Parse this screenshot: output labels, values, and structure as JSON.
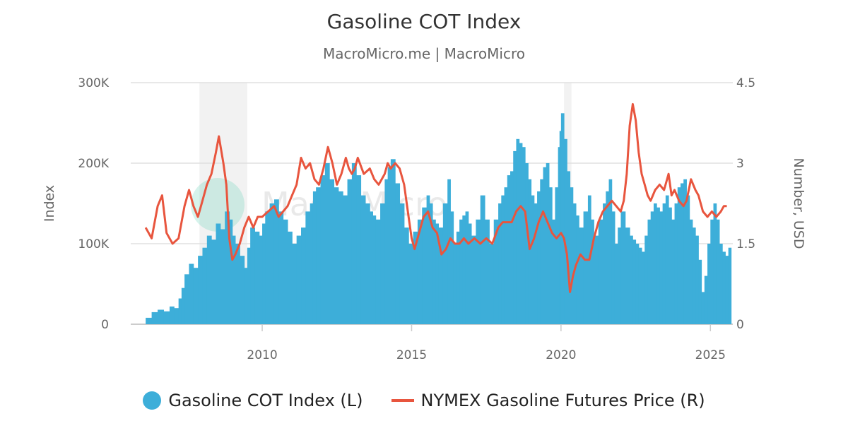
{
  "colors": {
    "index": "#3daed9",
    "price": "#e8553e",
    "recession": "#f2f2f2",
    "grid": "#e0e0e0"
  },
  "chart_data": {
    "type": "bar+line",
    "title": "Gasoline COT Index",
    "subtitle": "MacroMicro.me | MacroMicro",
    "xlabel": "",
    "ylabel_left": "Index",
    "ylabel_right": "Number, USD",
    "xlim": [
      2005.6,
      2025.75
    ],
    "ylim_left": [
      0,
      300000
    ],
    "ylim_right": [
      0,
      4.5
    ],
    "x_ticks": [
      "2010",
      "2015",
      "2020",
      "2025"
    ],
    "y_left_ticks": [
      "0",
      "100K",
      "200K",
      "300K"
    ],
    "y_right_ticks": [
      "0",
      "1.5",
      "3",
      "4.5"
    ],
    "grid": true,
    "legend": "bottom",
    "recessions": [
      [
        2007.9,
        2009.5
      ],
      [
        2020.1,
        2020.35
      ]
    ],
    "series": [
      {
        "name": "Gasoline COT Index (L)",
        "type": "bar",
        "axis": "left",
        "x": [
          2006.1,
          2006.3,
          2006.5,
          2006.7,
          2006.9,
          2007.05,
          2007.2,
          2007.3,
          2007.4,
          2007.55,
          2007.7,
          2007.85,
          2008.0,
          2008.15,
          2008.3,
          2008.45,
          2008.6,
          2008.75,
          2008.9,
          2009.0,
          2009.1,
          2009.25,
          2009.4,
          2009.5,
          2009.6,
          2009.75,
          2009.9,
          2010.0,
          2010.1,
          2010.25,
          2010.4,
          2010.55,
          2010.7,
          2010.85,
          2011.0,
          2011.15,
          2011.3,
          2011.45,
          2011.6,
          2011.7,
          2011.8,
          2011.95,
          2012.1,
          2012.25,
          2012.4,
          2012.55,
          2012.7,
          2012.85,
          2013.0,
          2013.15,
          2013.3,
          2013.45,
          2013.6,
          2013.7,
          2013.8,
          2013.95,
          2014.1,
          2014.2,
          2014.3,
          2014.45,
          2014.6,
          2014.75,
          2014.9,
          2015.05,
          2015.2,
          2015.35,
          2015.5,
          2015.6,
          2015.7,
          2015.8,
          2015.9,
          2016.05,
          2016.2,
          2016.3,
          2016.4,
          2016.5,
          2016.6,
          2016.7,
          2016.8,
          2016.9,
          2017.0,
          2017.15,
          2017.3,
          2017.45,
          2017.6,
          2017.75,
          2017.9,
          2018.0,
          2018.1,
          2018.2,
          2018.3,
          2018.4,
          2018.5,
          2018.6,
          2018.7,
          2018.8,
          2018.9,
          2019.0,
          2019.1,
          2019.2,
          2019.3,
          2019.4,
          2019.5,
          2019.6,
          2019.7,
          2019.8,
          2019.9,
          2019.95,
          2020.0,
          2020.1,
          2020.2,
          2020.3,
          2020.4,
          2020.5,
          2020.6,
          2020.75,
          2020.9,
          2021.0,
          2021.1,
          2021.25,
          2021.4,
          2021.5,
          2021.6,
          2021.7,
          2021.8,
          2021.9,
          2022.0,
          2022.15,
          2022.3,
          2022.4,
          2022.5,
          2022.6,
          2022.7,
          2022.8,
          2022.9,
          2023.0,
          2023.1,
          2023.2,
          2023.3,
          2023.4,
          2023.5,
          2023.6,
          2023.7,
          2023.8,
          2023.9,
          2024.0,
          2024.1,
          2024.2,
          2024.3,
          2024.4,
          2024.5,
          2024.6,
          2024.7,
          2024.8,
          2024.9,
          2025.0,
          2025.1,
          2025.2,
          2025.3,
          2025.4,
          2025.5,
          2025.6
        ],
        "values": [
          8000,
          15000,
          18000,
          16000,
          22000,
          20000,
          32000,
          45000,
          62000,
          75000,
          70000,
          85000,
          95000,
          110000,
          105000,
          125000,
          118000,
          140000,
          130000,
          110000,
          100000,
          85000,
          70000,
          95000,
          120000,
          115000,
          110000,
          125000,
          140000,
          150000,
          155000,
          140000,
          130000,
          115000,
          100000,
          110000,
          120000,
          140000,
          150000,
          165000,
          170000,
          185000,
          200000,
          180000,
          170000,
          165000,
          160000,
          180000,
          200000,
          185000,
          160000,
          150000,
          140000,
          135000,
          130000,
          150000,
          180000,
          195000,
          205000,
          175000,
          150000,
          120000,
          100000,
          115000,
          130000,
          145000,
          160000,
          150000,
          130000,
          125000,
          120000,
          150000,
          180000,
          140000,
          100000,
          115000,
          130000,
          135000,
          140000,
          125000,
          110000,
          130000,
          160000,
          130000,
          100000,
          130000,
          150000,
          160000,
          170000,
          185000,
          190000,
          215000,
          230000,
          225000,
          220000,
          200000,
          180000,
          160000,
          150000,
          165000,
          180000,
          195000,
          200000,
          170000,
          130000,
          170000,
          220000,
          240000,
          262000,
          230000,
          190000,
          170000,
          150000,
          135000,
          120000,
          140000,
          160000,
          130000,
          110000,
          130000,
          150000,
          165000,
          180000,
          140000,
          100000,
          120000,
          140000,
          120000,
          110000,
          105000,
          100000,
          95000,
          90000,
          110000,
          130000,
          140000,
          150000,
          145000,
          140000,
          150000,
          160000,
          145000,
          130000,
          150000,
          170000,
          175000,
          180000,
          160000,
          130000,
          120000,
          110000,
          80000,
          40000,
          60000,
          100000,
          130000,
          150000,
          130000,
          100000,
          90000,
          85000,
          95000
        ]
      },
      {
        "name": "NYMEX Gasoline Futures Price (R)",
        "type": "line",
        "axis": "right",
        "x": [
          2006.1,
          2006.3,
          2006.5,
          2006.65,
          2006.8,
          2007.0,
          2007.2,
          2007.4,
          2007.55,
          2007.7,
          2007.85,
          2008.0,
          2008.15,
          2008.3,
          2008.45,
          2008.55,
          2008.7,
          2008.8,
          2008.9,
          2009.0,
          2009.1,
          2009.25,
          2009.4,
          2009.55,
          2009.7,
          2009.85,
          2010.0,
          2010.2,
          2010.4,
          2010.55,
          2010.7,
          2010.85,
          2011.0,
          2011.15,
          2011.3,
          2011.45,
          2011.6,
          2011.75,
          2011.9,
          2012.05,
          2012.2,
          2012.35,
          2012.5,
          2012.65,
          2012.8,
          2012.9,
          2013.0,
          2013.1,
          2013.2,
          2013.4,
          2013.6,
          2013.75,
          2013.9,
          2014.0,
          2014.1,
          2014.2,
          2014.3,
          2014.45,
          2014.6,
          2014.75,
          2014.9,
          2015.0,
          2015.1,
          2015.25,
          2015.4,
          2015.55,
          2015.7,
          2015.85,
          2016.0,
          2016.15,
          2016.3,
          2016.45,
          2016.6,
          2016.75,
          2016.9,
          2017.1,
          2017.3,
          2017.5,
          2017.7,
          2017.9,
          2018.05,
          2018.2,
          2018.35,
          2018.5,
          2018.65,
          2018.8,
          2018.95,
          2019.1,
          2019.25,
          2019.4,
          2019.55,
          2019.7,
          2019.85,
          2020.0,
          2020.1,
          2020.2,
          2020.3,
          2020.4,
          2020.5,
          2020.65,
          2020.8,
          2020.95,
          2021.1,
          2021.25,
          2021.4,
          2021.55,
          2021.7,
          2021.85,
          2022.0,
          2022.1,
          2022.2,
          2022.3,
          2022.4,
          2022.5,
          2022.6,
          2022.7,
          2022.8,
          2022.9,
          2023.0,
          2023.15,
          2023.3,
          2023.45,
          2023.6,
          2023.7,
          2023.8,
          2023.95,
          2024.1,
          2024.2,
          2024.35,
          2024.5,
          2024.6,
          2024.75,
          2024.9,
          2025.05,
          2025.2,
          2025.35,
          2025.45,
          2025.55
        ],
        "values": [
          1.8,
          1.6,
          2.2,
          2.4,
          1.7,
          1.5,
          1.6,
          2.2,
          2.5,
          2.2,
          2.0,
          2.3,
          2.6,
          2.8,
          3.2,
          3.5,
          3.0,
          2.6,
          1.6,
          1.2,
          1.3,
          1.5,
          1.8,
          2.0,
          1.8,
          2.0,
          2.0,
          2.1,
          2.2,
          2.0,
          2.1,
          2.2,
          2.4,
          2.6,
          3.1,
          2.9,
          3.0,
          2.7,
          2.6,
          2.9,
          3.3,
          3.0,
          2.6,
          2.8,
          3.1,
          2.9,
          2.8,
          2.9,
          3.1,
          2.8,
          2.9,
          2.7,
          2.6,
          2.7,
          2.8,
          3.0,
          2.9,
          3.0,
          2.9,
          2.6,
          2.0,
          1.6,
          1.4,
          1.7,
          2.0,
          2.1,
          1.8,
          1.7,
          1.3,
          1.4,
          1.6,
          1.5,
          1.5,
          1.6,
          1.5,
          1.6,
          1.5,
          1.6,
          1.5,
          1.8,
          1.9,
          1.9,
          1.9,
          2.1,
          2.2,
          2.1,
          1.4,
          1.6,
          1.9,
          2.1,
          1.9,
          1.7,
          1.6,
          1.7,
          1.6,
          1.3,
          0.6,
          0.9,
          1.1,
          1.3,
          1.2,
          1.2,
          1.6,
          1.9,
          2.1,
          2.2,
          2.3,
          2.2,
          2.1,
          2.3,
          2.8,
          3.7,
          4.1,
          3.8,
          3.2,
          2.8,
          2.6,
          2.4,
          2.3,
          2.5,
          2.6,
          2.5,
          2.8,
          2.4,
          2.5,
          2.3,
          2.2,
          2.3,
          2.7,
          2.5,
          2.4,
          2.1,
          2.0,
          2.1,
          2.0,
          2.1,
          2.2,
          2.2
        ]
      }
    ]
  },
  "watermark": "MacroMicro",
  "legend": {
    "index_label": "Gasoline COT Index (L)",
    "price_label": "NYMEX Gasoline Futures Price (R)"
  }
}
